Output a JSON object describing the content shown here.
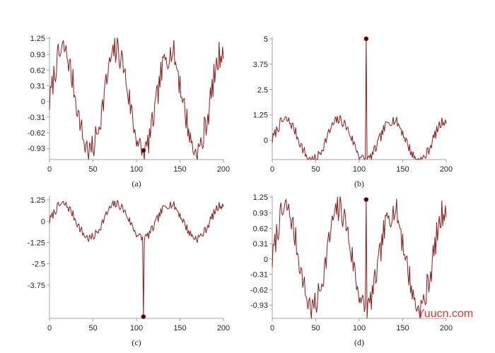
{
  "colors": {
    "line": "#8b1a1a",
    "axis": "#a0a0a0",
    "text": "#222222",
    "watermark": "#e8332a"
  },
  "watermark": "Yuucn.com",
  "base": {
    "period": 61.5,
    "noise_seed": 7,
    "noise_amp": 0.27,
    "x_range": [
      0,
      200
    ],
    "note": "all panels share one noisy sine signal y ≈ sin(2πx/61.5) over x = 0..200"
  },
  "chart_data": [
    {
      "type": "line",
      "caption": "(a)",
      "x_range": [
        0,
        200
      ],
      "y_range": [
        -1.15,
        1.28
      ],
      "xticks": [
        "0",
        "50",
        "100",
        "150",
        "200"
      ],
      "yticks": [
        "1.25",
        "0.93",
        "0.62",
        "0.31",
        "0",
        "-0.31",
        "-0.62",
        "-0.93"
      ],
      "series": [
        {
          "amplitude": 1.0,
          "extra_noise": 0.07
        }
      ],
      "marker": {
        "x": 108,
        "y": -0.97
      },
      "spike": null
    },
    {
      "type": "line",
      "caption": "(b)",
      "x_range": [
        0,
        200
      ],
      "y_range": [
        -0.95,
        5.1
      ],
      "xticks": [
        "0",
        "50",
        "100",
        "150",
        "200"
      ],
      "yticks": [
        "5",
        "3.75",
        "2.5",
        "1.25",
        "0"
      ],
      "series": [
        {
          "amplitude": 1.0,
          "extra_noise": 0.0
        }
      ],
      "marker": {
        "x": 108,
        "y": 5.0
      },
      "spike": {
        "x": 108,
        "y": 5.0
      }
    },
    {
      "type": "line",
      "caption": "(c)",
      "x_range": [
        0,
        200
      ],
      "y_range": [
        -5.7,
        1.5
      ],
      "xticks": [
        "0",
        "50",
        "100",
        "150",
        "200"
      ],
      "yticks": [
        "1.25",
        "0",
        "-1.25",
        "-2.5",
        "-3.75"
      ],
      "series": [
        {
          "amplitude": 1.0,
          "extra_noise": 0.0
        }
      ],
      "marker": {
        "x": 108,
        "y": -5.6
      },
      "spike": {
        "x": 108,
        "y": -5.6
      }
    },
    {
      "type": "line",
      "caption": "(d)",
      "x_range": [
        0,
        200
      ],
      "y_range": [
        -1.2,
        1.28
      ],
      "xticks": [
        "0",
        "50",
        "100",
        "150",
        "200"
      ],
      "yticks": [
        "1.25",
        "0.93",
        "0.62",
        "0.31",
        "0",
        "-0.31",
        "-0.62",
        "-0.93"
      ],
      "series": [
        {
          "amplitude": 1.0,
          "extra_noise": 0.07
        }
      ],
      "marker": {
        "x": 108,
        "y": 1.2
      },
      "spike": {
        "x": 108,
        "y": 1.2
      }
    }
  ]
}
